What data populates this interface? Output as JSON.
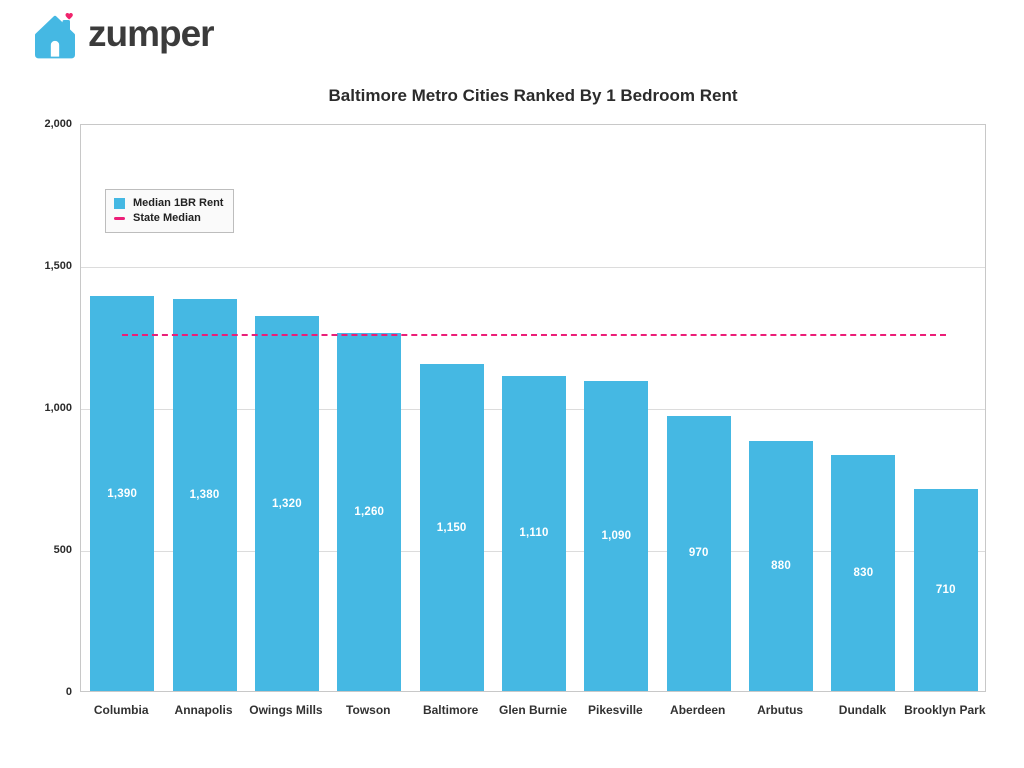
{
  "logo": {
    "brand": "zumper",
    "house_icon_color": "#45b8e3",
    "heart_color": "#f0246c"
  },
  "chart_data": {
    "type": "bar",
    "title": "Baltimore Metro Cities Ranked By 1 Bedroom Rent",
    "categories": [
      "Columbia",
      "Annapolis",
      "Owings Mills",
      "Towson",
      "Baltimore",
      "Glen Burnie",
      "Pikesville",
      "Aberdeen",
      "Arbutus",
      "Dundalk",
      "Brooklyn Park"
    ],
    "values": [
      1390,
      1380,
      1320,
      1260,
      1150,
      1110,
      1090,
      970,
      880,
      830,
      710
    ],
    "value_labels": [
      "1,390",
      "1,380",
      "1,320",
      "1,260",
      "1,150",
      "1,110",
      "1,090",
      "970",
      "880",
      "830",
      "710"
    ],
    "state_median": 1260,
    "xlabel": "",
    "ylabel": "",
    "ylim": [
      0,
      2000
    ],
    "yticks": [
      0,
      500,
      1000,
      1500,
      2000
    ],
    "ytick_labels": [
      "0",
      "500",
      "1,000",
      "1,500",
      "2,000"
    ],
    "grid": true,
    "bar_color": "#45b8e3",
    "median_line_color": "#ec1e78",
    "legend_position": "upper-left",
    "legend": [
      {
        "label": "Median 1BR Rent",
        "marker": "square",
        "color": "#45b8e3"
      },
      {
        "label": "State Median",
        "marker": "dash",
        "color": "#ec1e78"
      }
    ]
  }
}
